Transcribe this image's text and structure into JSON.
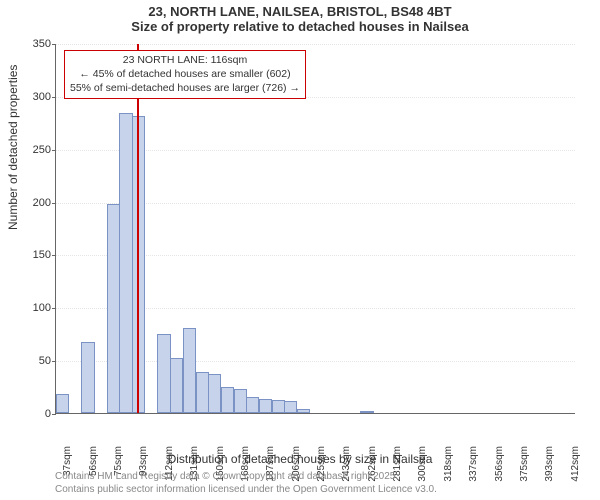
{
  "title_line1": "23, NORTH LANE, NAILSEA, BRISTOL, BS48 4BT",
  "title_line2": "Size of property relative to detached houses in Nailsea",
  "y_axis_label": "Number of detached properties",
  "x_axis_label": "Distribution of detached houses by size in Nailsea",
  "footer_line1": "Contains HM Land Registry data © Crown copyright and database right 2025.",
  "footer_line2": "Contains public sector information licensed under the Open Government Licence v3.0.",
  "chart": {
    "type": "histogram",
    "bar_fill": "#c6d3eb",
    "bar_stroke": "#7a93c4",
    "background_color": "#ffffff",
    "grid_color": "#e5e5e5",
    "axis_color": "#666666",
    "marker_color": "#cc0000",
    "y": {
      "min": 0,
      "max": 350,
      "step": 50
    },
    "x_tick_labels": [
      "37sqm",
      "56sqm",
      "75sqm",
      "93sqm",
      "112sqm",
      "131sqm",
      "150sqm",
      "168sqm",
      "187sqm",
      "206sqm",
      "225sqm",
      "243sqm",
      "262sqm",
      "281sqm",
      "300sqm",
      "318sqm",
      "337sqm",
      "356sqm",
      "375sqm",
      "393sqm",
      "412sqm"
    ],
    "values": [
      18,
      0,
      67,
      0,
      198,
      284,
      281,
      0,
      75,
      52,
      80,
      39,
      37,
      25,
      23,
      15,
      13,
      12,
      11,
      4,
      0,
      0,
      0,
      0,
      1,
      0,
      0,
      0,
      0,
      0,
      0,
      0,
      0,
      0,
      0,
      0,
      0,
      0,
      0,
      0,
      0
    ],
    "marker_index": 6,
    "annotation": {
      "line1": "23 NORTH LANE: 116sqm",
      "line2": "← 45% of detached houses are smaller (602)",
      "line3": "55% of semi-detached houses are larger (726) →"
    },
    "font_sizes": {
      "title": 13,
      "axis_label": 12,
      "tick": 11,
      "xtick": 10,
      "annot": 10.5,
      "footer": 10
    }
  }
}
